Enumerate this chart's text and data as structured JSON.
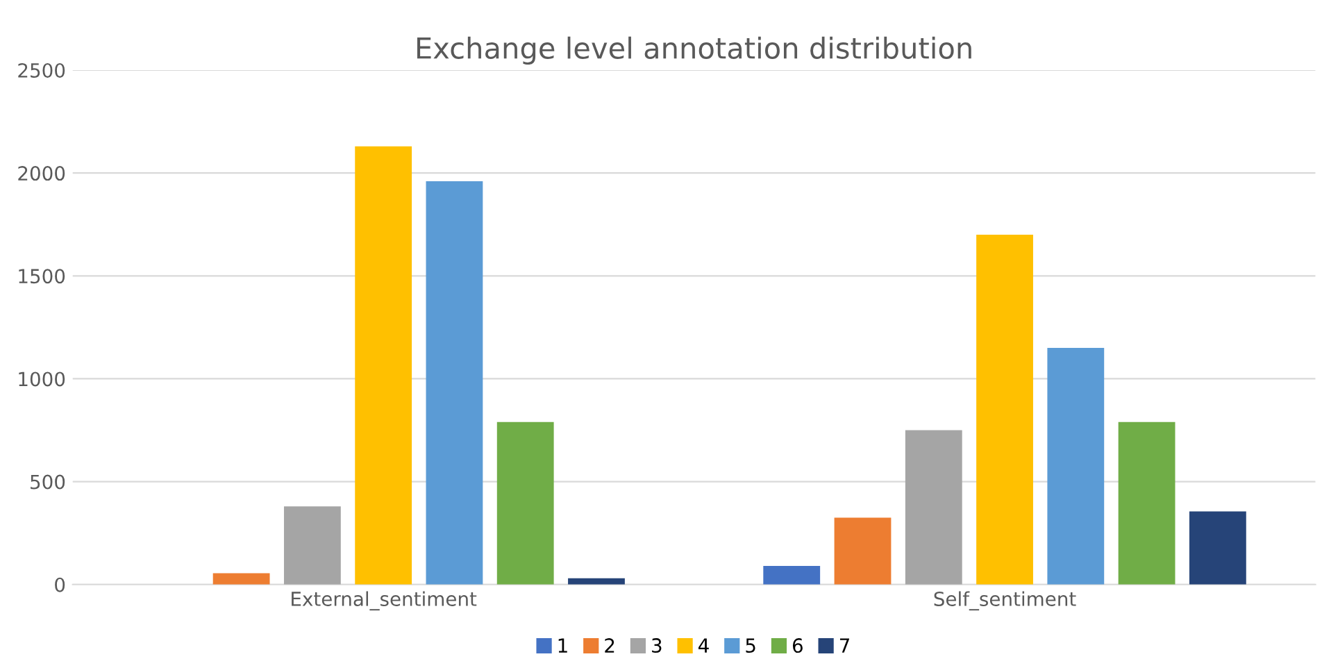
{
  "chart_data": {
    "type": "bar",
    "title": "Exchange level annotation distribution",
    "categories": [
      "External_sentiment",
      "Self_sentiment"
    ],
    "series": [
      {
        "name": "1",
        "color": "#4472c4",
        "values": [
          0,
          90
        ]
      },
      {
        "name": "2",
        "color": "#ed7d31",
        "values": [
          55,
          325
        ]
      },
      {
        "name": "3",
        "color": "#a5a5a5",
        "values": [
          380,
          750
        ]
      },
      {
        "name": "4",
        "color": "#ffc000",
        "values": [
          2130,
          1700
        ]
      },
      {
        "name": "5",
        "color": "#5b9bd5",
        "values": [
          1960,
          1150
        ]
      },
      {
        "name": "6",
        "color": "#70ad47",
        "values": [
          790,
          790
        ]
      },
      {
        "name": "7",
        "color": "#264478",
        "values": [
          30,
          355
        ]
      }
    ],
    "ylim": [
      0,
      2500
    ],
    "yticks": [
      0,
      500,
      1000,
      1500,
      2000,
      2500
    ],
    "grid": "y",
    "legend": "bottom"
  }
}
